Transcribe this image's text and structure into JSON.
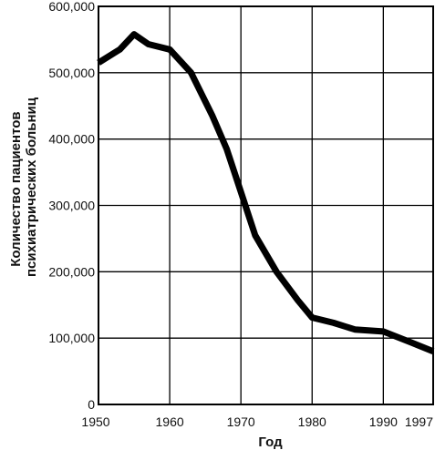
{
  "chart_data": {
    "type": "line",
    "title": "",
    "xlabel": "Год",
    "ylabel_lines": [
      "Количество пациентов",
      "психиатрических больниц"
    ],
    "xlim": [
      1950,
      1997
    ],
    "ylim": [
      0,
      600000
    ],
    "x_ticks": [
      1950,
      1960,
      1970,
      1980,
      1990,
      1997
    ],
    "x_tick_labels": [
      "1950",
      "1960",
      "1970",
      "1980",
      "1990",
      "1997"
    ],
    "y_ticks": [
      0,
      100000,
      200000,
      300000,
      400000,
      500000,
      600000
    ],
    "y_tick_labels": [
      "0",
      "100,000",
      "200,000",
      "300,000",
      "400,000",
      "500,000",
      "600,000"
    ],
    "grid": true,
    "line_color": "#000000",
    "series": [
      {
        "x": [
          1950,
          1953,
          1955,
          1957,
          1960,
          1963,
          1966,
          1968,
          1970,
          1972,
          1975,
          1978,
          1980,
          1983,
          1986,
          1990,
          1994,
          1997
        ],
        "y": [
          515000,
          535000,
          558000,
          543000,
          535000,
          500000,
          435000,
          385000,
          320000,
          255000,
          200000,
          157000,
          131000,
          123000,
          113000,
          110000,
          93000,
          80000
        ]
      }
    ]
  }
}
